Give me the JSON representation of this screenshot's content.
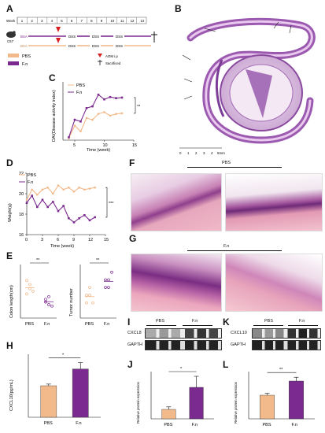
{
  "figure": {
    "panels": [
      "A",
      "B",
      "C",
      "D",
      "E",
      "F",
      "G",
      "H",
      "I",
      "J",
      "K",
      "L"
    ]
  },
  "panel_a": {
    "week_label": "Week",
    "weeks": [
      "1",
      "2",
      "3",
      "4",
      "5",
      "6",
      "7",
      "8",
      "9",
      "10",
      "11",
      "12",
      "13"
    ],
    "mouse_label": "C57",
    "bsa_label": "BSA",
    "dss_label": "DSS",
    "legend": {
      "pbs": "PBS",
      "fn": "F.n",
      "aom": "AOM i.p",
      "sacrificed": "Sacrificed"
    },
    "colors": {
      "pbs": "#f2b98a",
      "fn": "#7b2a8f",
      "aom": "#d81e1e"
    }
  },
  "panel_b": {
    "scale_ticks": [
      "0",
      "1",
      "2",
      "3",
      "4",
      "5mm"
    ]
  },
  "chart_c": {
    "type": "line",
    "ylabel": "DAI(Disease activity index)",
    "xlabel": "Time (week)",
    "xticks": [
      "5",
      "10",
      "15"
    ],
    "significance": "**",
    "x": [
      4,
      5,
      6,
      7,
      8,
      9,
      10,
      11,
      12,
      13
    ],
    "series": [
      {
        "name": "PBS",
        "values": [
          0.3,
          2.5,
          1.5,
          3.8,
          3.5,
          4.5,
          4.8,
          4.2,
          4.5,
          4.6
        ]
      },
      {
        "name": "F.n",
        "values": [
          0.5,
          3.5,
          3.2,
          5.5,
          5.8,
          7.8,
          7.0,
          7.4,
          7.2,
          7.3
        ]
      }
    ],
    "xlim": [
      3,
      15
    ],
    "ylim": [
      0,
      10
    ]
  },
  "chart_d": {
    "type": "line",
    "ylabel": "Weight(g)",
    "xlabel": "Time (week)",
    "xticks": [
      "0",
      "3",
      "6",
      "9",
      "12",
      "15"
    ],
    "yticks": [
      "16",
      "18",
      "20",
      "22"
    ],
    "significance": "***",
    "x": [
      0,
      1,
      2,
      3,
      4,
      5,
      6,
      7,
      8,
      9,
      10,
      11,
      12,
      13
    ],
    "series": [
      {
        "name": "PBS",
        "values": [
          19.4,
          20.4,
          19.9,
          20.4,
          20.6,
          20.0,
          20.8,
          20.4,
          20.6,
          20.2,
          20.6,
          20.4,
          20.5,
          20.6
        ]
      },
      {
        "name": "F.n",
        "values": [
          19.1,
          19.8,
          18.7,
          19.4,
          18.7,
          19.2,
          18.3,
          18.8,
          17.6,
          17.2,
          17.6,
          17.9,
          17.4,
          17.7
        ]
      }
    ],
    "xlim": [
      0,
      15
    ],
    "ylim": [
      16,
      22
    ]
  },
  "chart_e1": {
    "type": "scatter",
    "ylabel": "Colon length(cm)",
    "categories": [
      "PBS",
      "F.n"
    ],
    "significance": "**",
    "points": {
      "PBS": [
        7.8,
        7.2,
        7.0,
        6.8,
        7.5
      ],
      "F.n": [
        6.4,
        6.0,
        5.9,
        6.2,
        6.6
      ]
    }
  },
  "chart_e2": {
    "type": "scatter",
    "ylabel": "Tumor number",
    "categories": [
      "PBS",
      "F.n"
    ],
    "significance": "**",
    "points": {
      "PBS": [
        6,
        7,
        6,
        7,
        8
      ],
      "F.n": [
        8,
        9,
        10,
        9,
        8
      ]
    }
  },
  "panel_f": {
    "group_label": "PBS"
  },
  "panel_g": {
    "group_label": "F.n"
  },
  "chart_h": {
    "type": "bar",
    "ylabel": "CXCL10(pg/mL)",
    "categories": [
      "PBS",
      "F.n"
    ],
    "values": [
      7.5,
      11.5
    ],
    "errors": [
      0.4,
      1.5
    ],
    "significance": "*",
    "ylim": [
      0,
      15
    ]
  },
  "blot_i": {
    "groups": [
      "PBS",
      "F.n"
    ],
    "rows": [
      "CXCL8",
      "GAPTH"
    ]
  },
  "blot_k": {
    "groups": [
      "PBS",
      "F.n"
    ],
    "rows": [
      "CXCL10",
      "GAPTH"
    ]
  },
  "chart_j": {
    "type": "bar",
    "ylabel": "Relative protein expression",
    "categories": [
      "PBS",
      "F.n"
    ],
    "values": [
      0.3,
      1.0
    ],
    "errors": [
      0.08,
      0.35
    ],
    "significance": "*",
    "ylim": [
      0,
      1.5
    ]
  },
  "chart_l": {
    "type": "bar",
    "ylabel": "Relative protein expression",
    "categories": [
      "PBS",
      "F.n"
    ],
    "values": [
      0.25,
      0.4
    ],
    "errors": [
      0.02,
      0.04
    ],
    "significance": "**",
    "ylim": [
      0,
      0.5
    ]
  }
}
